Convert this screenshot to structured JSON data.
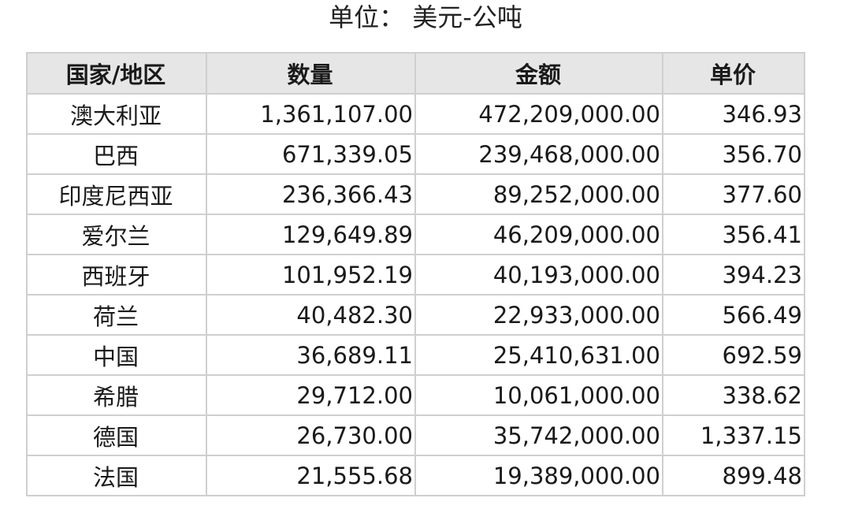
{
  "title": "单位： 美元-公吨",
  "table": {
    "headers": [
      "国家/地区",
      "数量",
      "金额",
      "单价"
    ],
    "rows": [
      [
        "澳大利亚",
        "1,361,107.00",
        "472,209,000.00",
        "346.93"
      ],
      [
        "巴西",
        "671,339.05",
        "239,468,000.00",
        "356.70"
      ],
      [
        "印度尼西亚",
        "236,366.43",
        "89,252,000.00",
        "377.60"
      ],
      [
        "爱尔兰",
        "129,649.89",
        "46,209,000.00",
        "356.41"
      ],
      [
        "西班牙",
        "101,952.19",
        "40,193,000.00",
        "394.23"
      ],
      [
        "荷兰",
        "40,482.30",
        "22,933,000.00",
        "566.49"
      ],
      [
        "中国",
        "36,689.11",
        "25,410,631.00",
        "692.59"
      ],
      [
        "希腊",
        "29,712.00",
        "10,061,000.00",
        "338.62"
      ],
      [
        "德国",
        "26,730.00",
        "35,742,000.00",
        "1,337.15"
      ],
      [
        "法国",
        "21,555.68",
        "19,389,000.00",
        "899.48"
      ]
    ]
  }
}
